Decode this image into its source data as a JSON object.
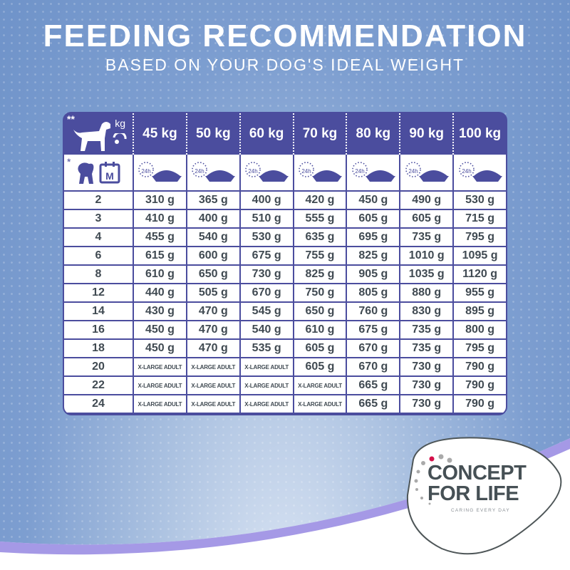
{
  "title": "FEEDING RECOMMENDATION",
  "subtitle": "BASED ON YOUR DOG'S IDEAL WEIGHT",
  "table": {
    "corner_marks": {
      "weight": "**",
      "age": "*"
    },
    "weight_unit_label": "kg",
    "age_unit_label": "M",
    "interval_label": "24h",
    "columns": [
      "45 kg",
      "50 kg",
      "60 kg",
      "70 kg",
      "80 kg",
      "90 kg",
      "100 kg"
    ],
    "rows": [
      {
        "age": "2",
        "values": [
          "310 g",
          "365 g",
          "400 g",
          "420 g",
          "450 g",
          "490 g",
          "530 g"
        ]
      },
      {
        "age": "3",
        "values": [
          "410 g",
          "400 g",
          "510 g",
          "555 g",
          "605 g",
          "605 g",
          "715 g"
        ]
      },
      {
        "age": "4",
        "values": [
          "455 g",
          "540 g",
          "530 g",
          "635 g",
          "695 g",
          "735 g",
          "795 g"
        ]
      },
      {
        "age": "6",
        "values": [
          "615 g",
          "600 g",
          "675 g",
          "755 g",
          "825 g",
          "1010 g",
          "1095 g"
        ]
      },
      {
        "age": "8",
        "values": [
          "610 g",
          "650 g",
          "730 g",
          "825 g",
          "905 g",
          "1035 g",
          "1120 g"
        ]
      },
      {
        "age": "12",
        "values": [
          "440 g",
          "505 g",
          "670 g",
          "750 g",
          "805 g",
          "880 g",
          "955 g"
        ]
      },
      {
        "age": "14",
        "values": [
          "430 g",
          "470 g",
          "545 g",
          "650 g",
          "760 g",
          "830 g",
          "895 g"
        ]
      },
      {
        "age": "16",
        "values": [
          "450 g",
          "470 g",
          "540 g",
          "610 g",
          "675 g",
          "735 g",
          "800 g"
        ]
      },
      {
        "age": "18",
        "values": [
          "450 g",
          "470 g",
          "535 g",
          "605 g",
          "670 g",
          "735 g",
          "795 g"
        ]
      },
      {
        "age": "20",
        "values": [
          "X-LARGE ADULT",
          "X-LARGE ADULT",
          "X-LARGE ADULT",
          "605 g",
          "670 g",
          "730 g",
          "790 g"
        ]
      },
      {
        "age": "22",
        "values": [
          "X-LARGE ADULT",
          "X-LARGE ADULT",
          "X-LARGE ADULT",
          "X-LARGE ADULT",
          "665 g",
          "730 g",
          "790 g"
        ]
      },
      {
        "age": "24",
        "values": [
          "X-LARGE ADULT",
          "X-LARGE ADULT",
          "X-LARGE ADULT",
          "X-LARGE ADULT",
          "665 g",
          "730 g",
          "790 g"
        ]
      }
    ]
  },
  "logo": {
    "line1": "CONCEPT",
    "line2": "FOR LIFE",
    "tagline": "CARING EVERY DAY"
  },
  "colors": {
    "header": "#4b4d9e",
    "text": "#404a52",
    "accent_dot": "#d4104a",
    "swoosh": "#8f7fe0"
  }
}
